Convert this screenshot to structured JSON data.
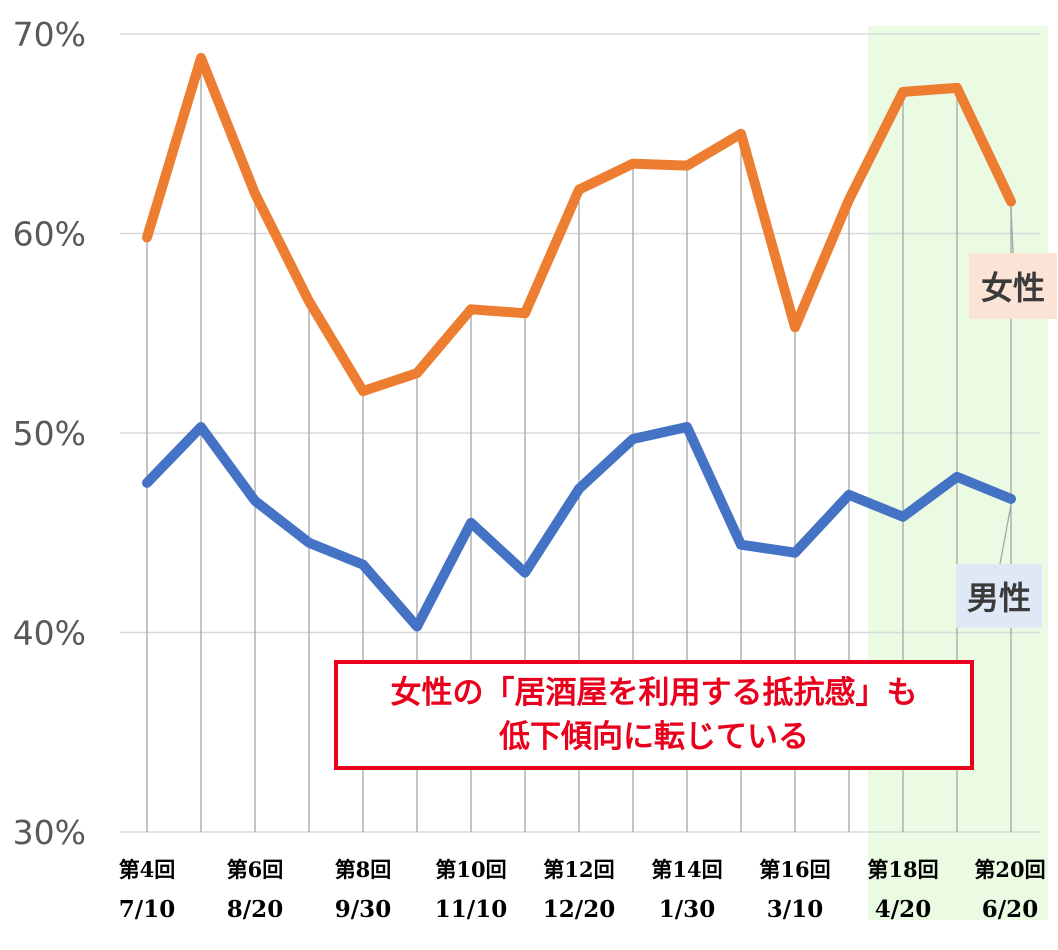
{
  "chart_data": {
    "type": "line",
    "ylim": [
      30,
      70
    ],
    "yticks": [
      "30%",
      "40%",
      "50%",
      "60%",
      "70%"
    ],
    "categories": [
      "第4回",
      "",
      "第6回",
      "",
      "第8回",
      "",
      "第10回",
      "",
      "第12回",
      "",
      "第14回",
      "",
      "第16回",
      "",
      "第18回",
      "",
      "第20回"
    ],
    "category_dates": [
      "7/10",
      "",
      "8/20",
      "",
      "9/30",
      "",
      "11/10",
      "",
      "12/20",
      "",
      "1/30",
      "",
      "3/10",
      "",
      "4/20",
      "",
      "6/20"
    ],
    "grid": true,
    "highlight_range": [
      "第18回",
      "第20回"
    ],
    "series": [
      {
        "name": "女性",
        "color": "#ed7d31",
        "values": [
          59.8,
          68.8,
          62.0,
          56.6,
          52.1,
          53.0,
          56.2,
          56.0,
          62.2,
          63.5,
          63.4,
          65.0,
          55.3,
          61.7,
          67.1,
          67.3,
          61.6
        ]
      },
      {
        "name": "男性",
        "color": "#4472c4",
        "values": [
          47.5,
          50.3,
          46.6,
          44.5,
          43.4,
          40.3,
          45.5,
          43.0,
          47.2,
          49.7,
          50.3,
          44.4,
          44.0,
          46.9,
          45.8,
          47.8,
          46.7
        ]
      }
    ],
    "annotation": {
      "line1": "女性の「居酒屋を利用する抵抗感」も",
      "line2": "低下傾向に転じている"
    },
    "colors": {
      "highlight_fill": "#ebfbe3",
      "annotation": "#e8001c",
      "female_label_bg": "#fbe3d6",
      "male_label_bg": "#dfe9f6"
    }
  }
}
